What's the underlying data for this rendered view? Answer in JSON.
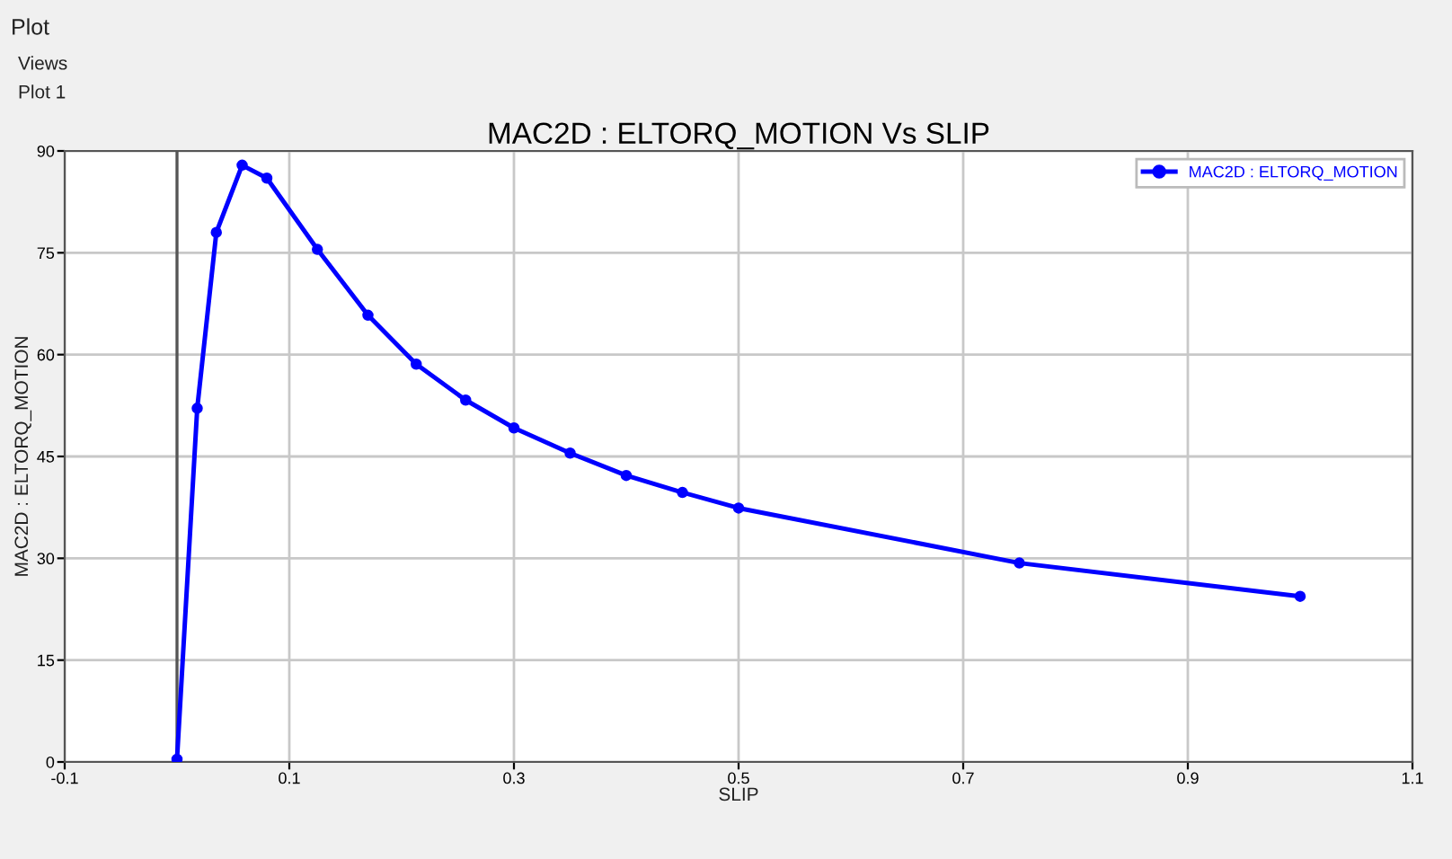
{
  "chart_data": {
    "type": "line",
    "title": "MAC2D : ELTORQ_MOTION Vs SLIP",
    "xlabel": "SLIP",
    "ylabel": "MAC2D : ELTORQ_MOTION",
    "annotations": [
      "Plot",
      "Views",
      "Plot 1"
    ],
    "x": [
      0,
      0.018,
      0.035,
      0.058,
      0.08,
      0.125,
      0.17,
      0.213,
      0.257,
      0.3,
      0.35,
      0.4,
      0.45,
      0.5,
      0.75,
      1.0
    ],
    "series": [
      {
        "name": "MAC2D : ELTORQ_MOTION",
        "color": "#0000ff",
        "values": [
          0.4,
          52.1,
          78,
          87.9,
          86,
          75.5,
          65.8,
          58.6,
          53.3,
          49.2,
          45.5,
          42.2,
          39.7,
          37.4,
          29.3,
          24.4
        ]
      }
    ],
    "xlim": [
      -0.1,
      1.1
    ],
    "xticks": [
      -0.1,
      0.1,
      0.3,
      0.5,
      0.7,
      0.9,
      1.1
    ],
    "ylim": [
      0,
      90
    ],
    "yticks": [
      0,
      15,
      30,
      45,
      60,
      75,
      90
    ],
    "ref_lines": [
      {
        "axis": "x",
        "value": 0,
        "color": "#555555"
      }
    ],
    "grid": true,
    "legend": "top right",
    "marker": "circle",
    "line_style": "solid"
  }
}
